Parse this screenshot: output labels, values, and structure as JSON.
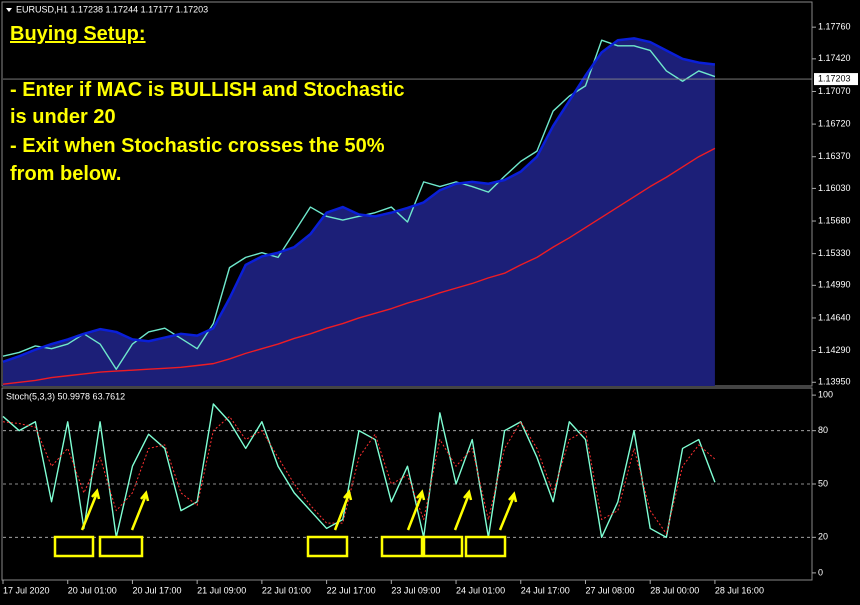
{
  "chart_data": [
    {
      "type": "line",
      "title": "EURUSD,H1 1.17238 1.17244 1.17177 1.17203",
      "annotations": [
        "Buying Setup:",
        "- Enter if MAC is BULLISH and Stochastic",
        "is under 20",
        "- Exit when Stochastic crosses the 50%",
        "from below."
      ],
      "x": [
        0,
        4,
        8,
        12,
        16,
        20,
        24,
        28,
        32,
        36,
        40,
        44,
        48,
        52,
        56,
        60,
        64,
        68,
        72,
        76,
        80,
        84,
        88,
        92,
        96,
        100,
        104,
        108,
        112,
        116,
        120,
        124,
        128,
        132,
        136,
        140,
        144,
        148,
        152,
        156,
        160,
        164,
        168,
        172,
        176
      ],
      "xlim": [
        0,
        200
      ],
      "ylim": [
        1.1391,
        1.1803
      ],
      "yticks": [
        {
          "value": 1.1776,
          "label": "1.17760"
        },
        {
          "value": 1.1742,
          "label": "1.17420"
        },
        {
          "value": 1.1707,
          "label": "1.17070"
        },
        {
          "value": 1.1672,
          "label": "1.16720"
        },
        {
          "value": 1.1637,
          "label": "1.16370"
        },
        {
          "value": 1.1603,
          "label": "1.16030"
        },
        {
          "value": 1.1568,
          "label": "1.15680"
        },
        {
          "value": 1.1533,
          "label": "1.15330"
        },
        {
          "value": 1.1499,
          "label": "1.14990"
        },
        {
          "value": 1.1464,
          "label": "1.14640"
        },
        {
          "value": 1.1429,
          "label": "1.14290"
        },
        {
          "value": 1.1395,
          "label": "1.13950"
        }
      ],
      "current_price": {
        "value": 1.17203,
        "label": "1.17203"
      },
      "series": [
        {
          "color": "#0a1fd8",
          "fill": "#1c1f78",
          "values": [
            1.1417,
            1.1423,
            1.143,
            1.1436,
            1.1441,
            1.1447,
            1.1452,
            1.1449,
            1.1441,
            1.1439,
            1.1443,
            1.1447,
            1.1445,
            1.1453,
            1.1485,
            1.1521,
            1.153,
            1.1534,
            1.154,
            1.1554,
            1.1577,
            1.1583,
            1.1575,
            1.1573,
            1.1577,
            1.1582,
            1.1588,
            1.1601,
            1.1608,
            1.161,
            1.1608,
            1.1612,
            1.1621,
            1.1637,
            1.167,
            1.1697,
            1.1724,
            1.1749,
            1.1762,
            1.1764,
            1.176,
            1.1751,
            1.1742,
            1.1738,
            1.1736
          ]
        },
        {
          "color": "#ee1c24",
          "values": [
            1.1393,
            1.1395,
            1.1397,
            1.14,
            1.1402,
            1.1404,
            1.1406,
            1.1407,
            1.1408,
            1.1409,
            1.141,
            1.1411,
            1.1413,
            1.1415,
            1.142,
            1.1426,
            1.1431,
            1.1436,
            1.1442,
            1.1447,
            1.1453,
            1.1458,
            1.1464,
            1.1469,
            1.1474,
            1.148,
            1.1485,
            1.1491,
            1.1496,
            1.1501,
            1.1507,
            1.1512,
            1.1521,
            1.1529,
            1.154,
            1.155,
            1.1561,
            1.1572,
            1.1583,
            1.1594,
            1.1605,
            1.1615,
            1.1626,
            1.1637,
            1.1646
          ]
        },
        {
          "color": "#6fe8cc",
          "values": [
            1.1423,
            1.1427,
            1.1434,
            1.1431,
            1.1436,
            1.1447,
            1.1436,
            1.1409,
            1.1436,
            1.1449,
            1.1453,
            1.1442,
            1.1431,
            1.1458,
            1.1518,
            1.1529,
            1.1534,
            1.1529,
            1.1556,
            1.1583,
            1.1573,
            1.1569,
            1.1573,
            1.1577,
            1.1583,
            1.1567,
            1.161,
            1.1605,
            1.161,
            1.1605,
            1.1599,
            1.1616,
            1.1632,
            1.1643,
            1.1686,
            1.1702,
            1.1713,
            1.1762,
            1.1756,
            1.1756,
            1.1751,
            1.1729,
            1.1718,
            1.1729,
            1.1723
          ]
        }
      ]
    },
    {
      "type": "line",
      "title": "Stoch(5,3,3) 50.9978 63.7612",
      "x": [
        0,
        4,
        8,
        12,
        16,
        20,
        24,
        28,
        32,
        36,
        40,
        44,
        48,
        52,
        56,
        60,
        64,
        68,
        72,
        76,
        80,
        84,
        88,
        92,
        96,
        100,
        104,
        108,
        112,
        116,
        120,
        124,
        128,
        132,
        136,
        140,
        144,
        148,
        152,
        156,
        160,
        164,
        168,
        172,
        176
      ],
      "xlim": [
        0,
        200
      ],
      "xticks": [
        {
          "value": 0,
          "label": "17 Jul 2020"
        },
        {
          "value": 16,
          "label": "20 Jul 01:00"
        },
        {
          "value": 32,
          "label": "20 Jul 17:00"
        },
        {
          "value": 48,
          "label": "21 Jul 09:00"
        },
        {
          "value": 64,
          "label": "22 Jul 01:00"
        },
        {
          "value": 80,
          "label": "22 Jul 17:00"
        },
        {
          "value": 96,
          "label": "23 Jul 09:00"
        },
        {
          "value": 112,
          "label": "24 Jul 01:00"
        },
        {
          "value": 128,
          "label": "24 Jul 17:00"
        },
        {
          "value": 144,
          "label": "27 Jul 08:00"
        },
        {
          "value": 160,
          "label": "28 Jul 00:00"
        },
        {
          "value": 176,
          "label": "28 Jul 16:00"
        }
      ],
      "ylim": [
        -4,
        104
      ],
      "yticks": [
        100,
        80,
        50,
        20,
        0
      ],
      "levels": [
        80,
        50,
        20
      ],
      "series": [
        {
          "color": "#7fffd4",
          "values": [
            88,
            80,
            85,
            40,
            85,
            25,
            85,
            20,
            60,
            78,
            70,
            35,
            40,
            95,
            85,
            70,
            85,
            60,
            45,
            35,
            25,
            30,
            80,
            75,
            40,
            60,
            20,
            90,
            50,
            75,
            20,
            80,
            85,
            65,
            40,
            85,
            75,
            20,
            40,
            80,
            25,
            20,
            70,
            75,
            51
          ]
        },
        {
          "color": "#ff3030",
          "dash": true,
          "values": [
            85,
            84,
            82,
            60,
            70,
            45,
            65,
            35,
            45,
            70,
            72,
            45,
            38,
            80,
            88,
            75,
            80,
            65,
            50,
            38,
            28,
            28,
            65,
            78,
            50,
            55,
            30,
            75,
            60,
            70,
            30,
            70,
            85,
            70,
            45,
            75,
            80,
            30,
            35,
            70,
            35,
            22,
            60,
            72,
            64
          ]
        }
      ]
    }
  ]
}
